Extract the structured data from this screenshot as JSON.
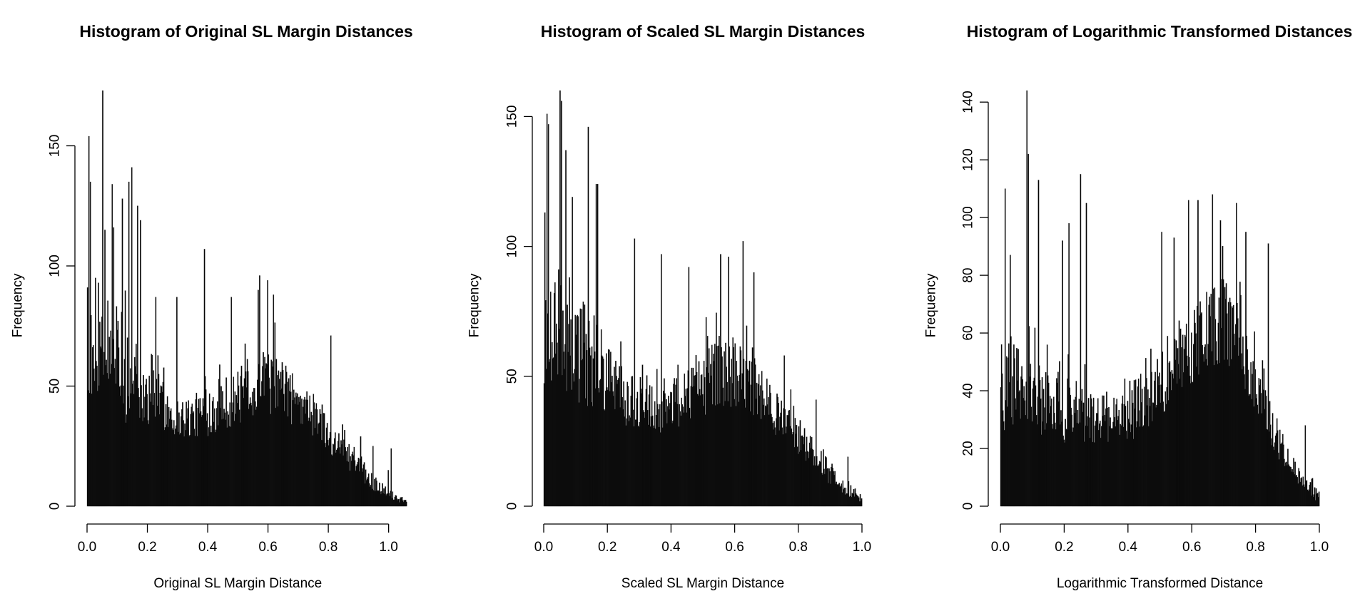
{
  "chart_data": [
    {
      "type": "bar",
      "title": "Histogram of Original SL Margin Distances",
      "xlabel": "Original SL Margin Distance",
      "ylabel": "Frequency",
      "xlim": [
        0,
        1.06
      ],
      "ylim": [
        0,
        173
      ],
      "x_ticks": [
        "0.0",
        "0.2",
        "0.4",
        "0.6",
        "0.8",
        "1.0"
      ],
      "x_tick_values": [
        0,
        0.2,
        0.4,
        0.6,
        0.8,
        1.0
      ],
      "y_ticks": [
        "0",
        "50",
        "100",
        "150"
      ],
      "y_tick_values": [
        0,
        50,
        100,
        150
      ],
      "profile": {
        "x": [
          0,
          0.05,
          0.1,
          0.15,
          0.2,
          0.25,
          0.3,
          0.35,
          0.4,
          0.45,
          0.5,
          0.55,
          0.6,
          0.65,
          0.7,
          0.75,
          0.8,
          0.85,
          0.9,
          0.95,
          1.0,
          1.06
        ],
        "base": [
          42,
          62,
          55,
          53,
          47,
          42,
          37,
          37,
          40,
          43,
          45,
          50,
          52,
          48,
          43,
          38,
          30,
          23,
          16,
          10,
          5,
          2
        ],
        "spread": [
          35,
          40,
          40,
          40,
          30,
          22,
          18,
          18,
          22,
          22,
          24,
          28,
          28,
          25,
          22,
          18,
          15,
          12,
          9,
          7,
          4,
          3
        ]
      },
      "peaks": [
        {
          "x": 0.002,
          "y": 91
        },
        {
          "x": 0.007,
          "y": 154
        },
        {
          "x": 0.012,
          "y": 135
        },
        {
          "x": 0.028,
          "y": 95
        },
        {
          "x": 0.052,
          "y": 173
        },
        {
          "x": 0.058,
          "y": 115
        },
        {
          "x": 0.088,
          "y": 116
        },
        {
          "x": 0.083,
          "y": 134
        },
        {
          "x": 0.118,
          "y": 128
        },
        {
          "x": 0.138,
          "y": 135
        },
        {
          "x": 0.148,
          "y": 141
        },
        {
          "x": 0.168,
          "y": 125
        },
        {
          "x": 0.178,
          "y": 119
        },
        {
          "x": 0.228,
          "y": 87
        },
        {
          "x": 0.298,
          "y": 87
        },
        {
          "x": 0.388,
          "y": 107
        },
        {
          "x": 0.478,
          "y": 87
        },
        {
          "x": 0.568,
          "y": 90
        },
        {
          "x": 0.573,
          "y": 96
        },
        {
          "x": 0.598,
          "y": 94
        },
        {
          "x": 0.618,
          "y": 88
        },
        {
          "x": 0.808,
          "y": 71
        },
        {
          "x": 0.848,
          "y": 34
        },
        {
          "x": 0.908,
          "y": 29
        },
        {
          "x": 0.948,
          "y": 25
        },
        {
          "x": 0.998,
          "y": 15
        },
        {
          "x": 1.008,
          "y": 24
        }
      ]
    },
    {
      "type": "bar",
      "title": "Histogram of Scaled SL Margin Distances",
      "xlabel": "Scaled SL Margin Distance",
      "ylabel": "Frequency",
      "xlim": [
        0,
        1.0
      ],
      "ylim": [
        0,
        160
      ],
      "x_ticks": [
        "0.0",
        "0.2",
        "0.4",
        "0.6",
        "0.8",
        "1.0"
      ],
      "x_tick_values": [
        0,
        0.2,
        0.4,
        0.6,
        0.8,
        1.0
      ],
      "y_ticks": [
        "0",
        "50",
        "100",
        "150"
      ],
      "y_tick_values": [
        0,
        50,
        100,
        150
      ],
      "profile": {
        "x": [
          0,
          0.05,
          0.1,
          0.15,
          0.2,
          0.25,
          0.3,
          0.35,
          0.4,
          0.45,
          0.5,
          0.55,
          0.6,
          0.65,
          0.7,
          0.75,
          0.8,
          0.85,
          0.9,
          0.95,
          1.0
        ],
        "base": [
          55,
          70,
          60,
          58,
          48,
          42,
          40,
          38,
          40,
          43,
          47,
          52,
          52,
          46,
          40,
          34,
          27,
          20,
          12,
          6,
          2
        ],
        "spread": [
          45,
          45,
          40,
          40,
          30,
          22,
          20,
          20,
          22,
          22,
          25,
          28,
          28,
          25,
          20,
          17,
          14,
          11,
          8,
          5,
          3
        ]
      },
      "peaks": [
        {
          "x": 0.003,
          "y": 113
        },
        {
          "x": 0.01,
          "y": 151
        },
        {
          "x": 0.015,
          "y": 147
        },
        {
          "x": 0.05,
          "y": 160
        },
        {
          "x": 0.055,
          "y": 156
        },
        {
          "x": 0.07,
          "y": 137
        },
        {
          "x": 0.09,
          "y": 119
        },
        {
          "x": 0.14,
          "y": 146
        },
        {
          "x": 0.165,
          "y": 124
        },
        {
          "x": 0.17,
          "y": 124
        },
        {
          "x": 0.285,
          "y": 103
        },
        {
          "x": 0.37,
          "y": 97
        },
        {
          "x": 0.455,
          "y": 92
        },
        {
          "x": 0.555,
          "y": 97
        },
        {
          "x": 0.58,
          "y": 96
        },
        {
          "x": 0.625,
          "y": 102
        },
        {
          "x": 0.66,
          "y": 90
        },
        {
          "x": 0.755,
          "y": 58
        },
        {
          "x": 0.855,
          "y": 41
        },
        {
          "x": 0.955,
          "y": 19
        }
      ]
    },
    {
      "type": "bar",
      "title": "Histogram of Logarithmic Transformed Distances",
      "xlabel": "Logarithmic Transformed Distance",
      "ylabel": "Frequency",
      "xlim": [
        0,
        1.0
      ],
      "ylim": [
        0,
        144
      ],
      "x_ticks": [
        "0.0",
        "0.2",
        "0.4",
        "0.6",
        "0.8",
        "1.0"
      ],
      "x_tick_values": [
        0,
        0.2,
        0.4,
        0.6,
        0.8,
        1.0
      ],
      "y_ticks": [
        "0",
        "20",
        "40",
        "60",
        "80",
        "100",
        "120",
        "140"
      ],
      "y_tick_values": [
        0,
        20,
        40,
        60,
        80,
        100,
        120,
        140
      ],
      "profile": {
        "x": [
          0,
          0.05,
          0.1,
          0.15,
          0.2,
          0.25,
          0.3,
          0.35,
          0.4,
          0.45,
          0.5,
          0.55,
          0.6,
          0.65,
          0.7,
          0.75,
          0.8,
          0.85,
          0.9,
          0.95,
          1.0
        ],
        "base": [
          38,
          42,
          38,
          36,
          34,
          32,
          30,
          28,
          32,
          36,
          42,
          48,
          54,
          62,
          65,
          55,
          42,
          28,
          16,
          8,
          3
        ],
        "spread": [
          25,
          28,
          28,
          26,
          24,
          22,
          20,
          18,
          20,
          22,
          24,
          26,
          28,
          30,
          30,
          26,
          20,
          15,
          10,
          6,
          4
        ]
      },
      "peaks": [
        {
          "x": 0.003,
          "y": 56
        },
        {
          "x": 0.015,
          "y": 110
        },
        {
          "x": 0.03,
          "y": 87
        },
        {
          "x": 0.083,
          "y": 144
        },
        {
          "x": 0.088,
          "y": 122
        },
        {
          "x": 0.12,
          "y": 113
        },
        {
          "x": 0.195,
          "y": 92
        },
        {
          "x": 0.215,
          "y": 98
        },
        {
          "x": 0.25,
          "y": 115
        },
        {
          "x": 0.27,
          "y": 105
        },
        {
          "x": 0.505,
          "y": 95
        },
        {
          "x": 0.545,
          "y": 93
        },
        {
          "x": 0.59,
          "y": 106
        },
        {
          "x": 0.62,
          "y": 106
        },
        {
          "x": 0.665,
          "y": 108
        },
        {
          "x": 0.69,
          "y": 99
        },
        {
          "x": 0.74,
          "y": 105
        },
        {
          "x": 0.77,
          "y": 95
        },
        {
          "x": 0.84,
          "y": 91
        },
        {
          "x": 0.955,
          "y": 28
        }
      ]
    }
  ]
}
